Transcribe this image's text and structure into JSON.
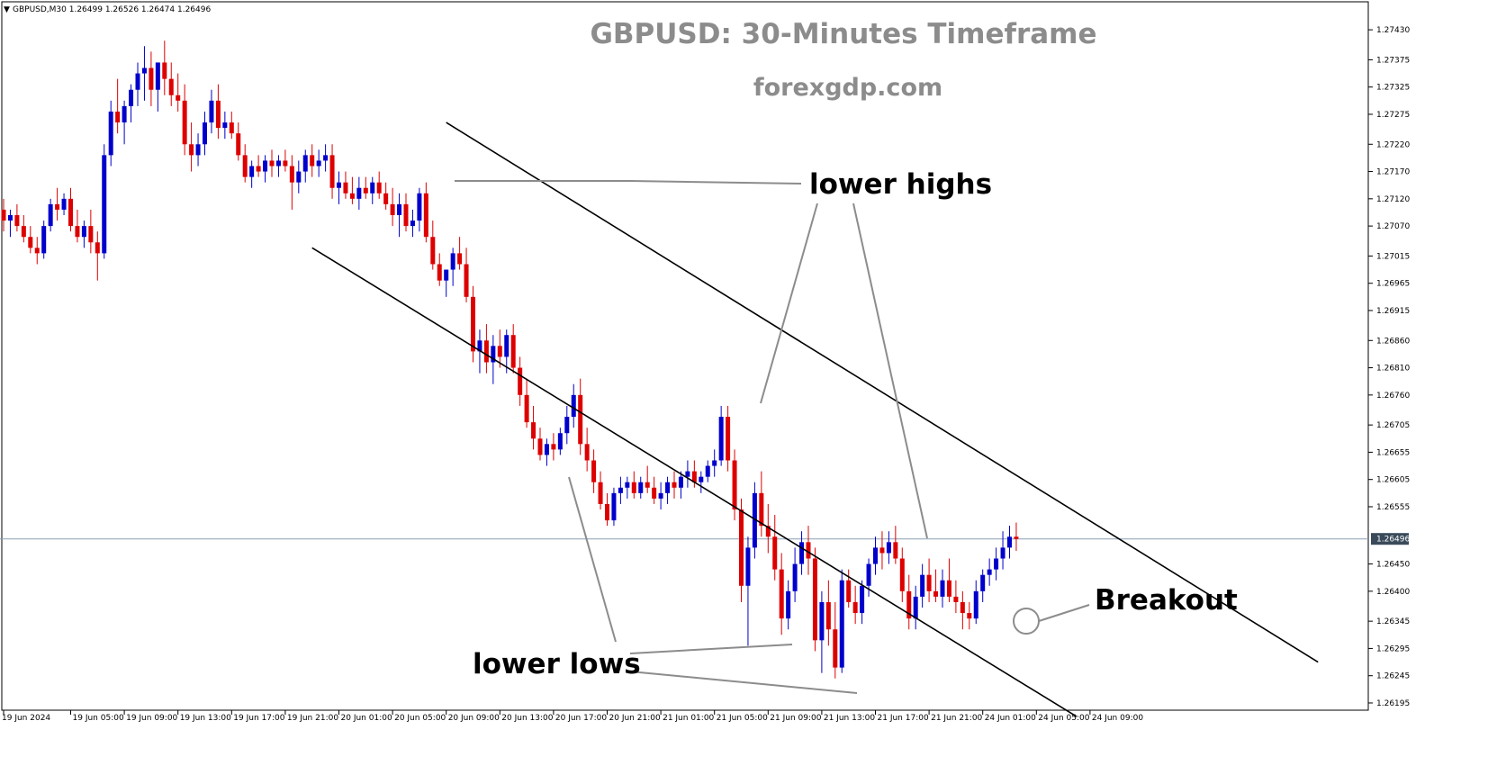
{
  "chart_data": {
    "type": "candlestick",
    "title": "GBPUSD: 30-Minutes Timeframe",
    "subtitle": "forexgdp.com",
    "header": {
      "marker": "▼",
      "text": "GBPUSD,M30  1.26499 1.26526 1.26474 1.26496"
    },
    "current_price": 1.26496,
    "current_price_label": "1.26496",
    "y_axis": {
      "range": [
        1.2619,
        1.2745
      ],
      "ticks": [
        "1.27430",
        "1.27375",
        "1.27325",
        "1.27275",
        "1.27220",
        "1.27170",
        "1.27120",
        "1.27070",
        "1.27015",
        "1.26965",
        "1.26915",
        "1.26860",
        "1.26810",
        "1.26760",
        "1.26705",
        "1.26655",
        "1.26605",
        "1.26555",
        "1.26450",
        "1.26400",
        "1.26345",
        "1.26295",
        "1.26245",
        "1.26195"
      ]
    },
    "x_axis": {
      "ticks": [
        {
          "label": "19 Jun 2024",
          "bar": 0
        },
        {
          "label": "19 Jun 05:00",
          "bar": 10
        },
        {
          "label": "19 Jun 09:00",
          "bar": 18
        },
        {
          "label": "19 Jun 13:00",
          "bar": 26
        },
        {
          "label": "19 Jun 17:00",
          "bar": 34
        },
        {
          "label": "19 Jun 21:00",
          "bar": 42
        },
        {
          "label": "20 Jun 01:00",
          "bar": 50
        },
        {
          "label": "20 Jun 05:00",
          "bar": 58
        },
        {
          "label": "20 Jun 09:00",
          "bar": 66
        },
        {
          "label": "20 Jun 13:00",
          "bar": 74
        },
        {
          "label": "20 Jun 17:00",
          "bar": 82
        },
        {
          "label": "20 Jun 21:00",
          "bar": 90
        },
        {
          "label": "21 Jun 01:00",
          "bar": 98
        },
        {
          "label": "21 Jun 05:00",
          "bar": 106
        },
        {
          "label": "21 Jun 09:00",
          "bar": 114
        },
        {
          "label": "21 Jun 13:00",
          "bar": 122
        },
        {
          "label": "21 Jun 17:00",
          "bar": 130
        },
        {
          "label": "21 Jun 21:00",
          "bar": 138
        },
        {
          "label": "24 Jun 01:00",
          "bar": 146
        },
        {
          "label": "24 Jun 05:00",
          "bar": 154
        },
        {
          "label": "24 Jun 09:00",
          "bar": 162
        }
      ]
    },
    "bull_color": "#0000cc",
    "bear_color": "#dd0000",
    "candles": [
      [
        1.271,
        1.2712,
        1.2706,
        1.2708
      ],
      [
        1.2708,
        1.271,
        1.2705,
        1.2709
      ],
      [
        1.2709,
        1.2711,
        1.2706,
        1.2707
      ],
      [
        1.2707,
        1.2709,
        1.2704,
        1.2705
      ],
      [
        1.2705,
        1.2707,
        1.2702,
        1.2703
      ],
      [
        1.2703,
        1.2705,
        1.27,
        1.2702
      ],
      [
        1.2702,
        1.2708,
        1.2701,
        1.2707
      ],
      [
        1.2707,
        1.2712,
        1.2706,
        1.2711
      ],
      [
        1.2711,
        1.2714,
        1.2708,
        1.271
      ],
      [
        1.271,
        1.2713,
        1.2709,
        1.2712
      ],
      [
        1.2712,
        1.2714,
        1.2706,
        1.2707
      ],
      [
        1.2707,
        1.271,
        1.2704,
        1.2705
      ],
      [
        1.2705,
        1.2708,
        1.2703,
        1.2707
      ],
      [
        1.2707,
        1.271,
        1.2702,
        1.2704
      ],
      [
        1.2704,
        1.2706,
        1.2697,
        1.2702
      ],
      [
        1.2702,
        1.2722,
        1.2701,
        1.272
      ],
      [
        1.272,
        1.273,
        1.2718,
        1.2728
      ],
      [
        1.2728,
        1.2734,
        1.2724,
        1.2726
      ],
      [
        1.2726,
        1.273,
        1.2722,
        1.2729
      ],
      [
        1.2729,
        1.2733,
        1.2726,
        1.2732
      ],
      [
        1.2732,
        1.2737,
        1.2729,
        1.2735
      ],
      [
        1.2735,
        1.274,
        1.273,
        1.2736
      ],
      [
        1.2736,
        1.2739,
        1.2729,
        1.2732
      ],
      [
        1.2732,
        1.2737,
        1.2728,
        1.2737
      ],
      [
        1.2737,
        1.2741,
        1.2731,
        1.2734
      ],
      [
        1.2734,
        1.2737,
        1.2729,
        1.2731
      ],
      [
        1.2731,
        1.2735,
        1.2728,
        1.273
      ],
      [
        1.273,
        1.2733,
        1.272,
        1.2722
      ],
      [
        1.2722,
        1.2726,
        1.2717,
        1.272
      ],
      [
        1.272,
        1.2724,
        1.2718,
        1.2722
      ],
      [
        1.2722,
        1.2728,
        1.272,
        1.2726
      ],
      [
        1.2726,
        1.2732,
        1.2724,
        1.273
      ],
      [
        1.273,
        1.2733,
        1.2723,
        1.2725
      ],
      [
        1.2725,
        1.2728,
        1.2723,
        1.2726
      ],
      [
        1.2726,
        1.2728,
        1.2723,
        1.2724
      ],
      [
        1.2724,
        1.2726,
        1.2719,
        1.272
      ],
      [
        1.272,
        1.2722,
        1.2715,
        1.2716
      ],
      [
        1.2716,
        1.2719,
        1.2714,
        1.2718
      ],
      [
        1.2718,
        1.272,
        1.2716,
        1.2717
      ],
      [
        1.2717,
        1.272,
        1.2715,
        1.2719
      ],
      [
        1.2719,
        1.2721,
        1.2716,
        1.2718
      ],
      [
        1.2718,
        1.272,
        1.2716,
        1.2719
      ],
      [
        1.2719,
        1.2721,
        1.2717,
        1.2718
      ],
      [
        1.2718,
        1.272,
        1.271,
        1.2715
      ],
      [
        1.2715,
        1.2719,
        1.2713,
        1.2717
      ],
      [
        1.2717,
        1.2721,
        1.2715,
        1.272
      ],
      [
        1.272,
        1.2722,
        1.2716,
        1.2718
      ],
      [
        1.2718,
        1.2721,
        1.2716,
        1.2719
      ],
      [
        1.2719,
        1.2722,
        1.2717,
        1.272
      ],
      [
        1.272,
        1.2722,
        1.2712,
        1.2714
      ],
      [
        1.2714,
        1.2717,
        1.2711,
        1.2715
      ],
      [
        1.2715,
        1.2717,
        1.2712,
        1.2713
      ],
      [
        1.2713,
        1.2716,
        1.2711,
        1.2712
      ],
      [
        1.2712,
        1.2716,
        1.271,
        1.2714
      ],
      [
        1.2714,
        1.2716,
        1.2712,
        1.2713
      ],
      [
        1.2713,
        1.2716,
        1.2711,
        1.2715
      ],
      [
        1.2715,
        1.2717,
        1.2712,
        1.2713
      ],
      [
        1.2713,
        1.2715,
        1.271,
        1.2711
      ],
      [
        1.2711,
        1.2714,
        1.2707,
        1.2709
      ],
      [
        1.2709,
        1.2713,
        1.2705,
        1.2711
      ],
      [
        1.2711,
        1.2713,
        1.2706,
        1.2707
      ],
      [
        1.2707,
        1.271,
        1.2705,
        1.2708
      ],
      [
        1.2708,
        1.2714,
        1.2706,
        1.2713
      ],
      [
        1.2713,
        1.2715,
        1.2704,
        1.2705
      ],
      [
        1.2705,
        1.2708,
        1.2699,
        1.27
      ],
      [
        1.27,
        1.2702,
        1.2696,
        1.2697
      ],
      [
        1.2697,
        1.2699,
        1.2694,
        1.2699
      ],
      [
        1.2699,
        1.2703,
        1.2696,
        1.2702
      ],
      [
        1.2702,
        1.2705,
        1.2699,
        1.27
      ],
      [
        1.27,
        1.2703,
        1.2693,
        1.2694
      ],
      [
        1.2694,
        1.2696,
        1.2682,
        1.2684
      ],
      [
        1.2684,
        1.2688,
        1.268,
        1.2686
      ],
      [
        1.2686,
        1.2689,
        1.268,
        1.2682
      ],
      [
        1.2682,
        1.2687,
        1.2678,
        1.2685
      ],
      [
        1.2685,
        1.2688,
        1.2681,
        1.2683
      ],
      [
        1.2683,
        1.2688,
        1.268,
        1.2687
      ],
      [
        1.2687,
        1.2689,
        1.268,
        1.2681
      ],
      [
        1.2681,
        1.2683,
        1.2674,
        1.2676
      ],
      [
        1.2676,
        1.2679,
        1.267,
        1.2671
      ],
      [
        1.2671,
        1.2674,
        1.2666,
        1.2668
      ],
      [
        1.2668,
        1.267,
        1.2664,
        1.2665
      ],
      [
        1.2665,
        1.2668,
        1.2663,
        1.2667
      ],
      [
        1.2667,
        1.2669,
        1.2664,
        1.2666
      ],
      [
        1.2666,
        1.267,
        1.2665,
        1.2669
      ],
      [
        1.2669,
        1.2674,
        1.2667,
        1.2672
      ],
      [
        1.2672,
        1.2678,
        1.267,
        1.2676
      ],
      [
        1.2676,
        1.2679,
        1.2665,
        1.2667
      ],
      [
        1.2667,
        1.267,
        1.2662,
        1.2664
      ],
      [
        1.2664,
        1.2666,
        1.2658,
        1.266
      ],
      [
        1.266,
        1.2662,
        1.2655,
        1.2656
      ],
      [
        1.2656,
        1.2658,
        1.2652,
        1.2653
      ],
      [
        1.2653,
        1.2659,
        1.2652,
        1.2658
      ],
      [
        1.2658,
        1.2661,
        1.2656,
        1.2659
      ],
      [
        1.2659,
        1.2661,
        1.2657,
        1.266
      ],
      [
        1.266,
        1.2662,
        1.2657,
        1.2658
      ],
      [
        1.2658,
        1.2661,
        1.2657,
        1.266
      ],
      [
        1.266,
        1.2663,
        1.2658,
        1.2659
      ],
      [
        1.2659,
        1.2661,
        1.2656,
        1.2657
      ],
      [
        1.2657,
        1.266,
        1.2655,
        1.2658
      ],
      [
        1.2658,
        1.2661,
        1.2656,
        1.266
      ],
      [
        1.266,
        1.2662,
        1.2657,
        1.2659
      ],
      [
        1.2659,
        1.2662,
        1.2657,
        1.2661
      ],
      [
        1.2661,
        1.2664,
        1.2659,
        1.2662
      ],
      [
        1.2662,
        1.2664,
        1.2659,
        1.266
      ],
      [
        1.266,
        1.2662,
        1.2658,
        1.2661
      ],
      [
        1.2661,
        1.2664,
        1.266,
        1.2663
      ],
      [
        1.2663,
        1.2666,
        1.2661,
        1.2664
      ],
      [
        1.2664,
        1.2674,
        1.2663,
        1.2672
      ],
      [
        1.2672,
        1.2674,
        1.2662,
        1.2664
      ],
      [
        1.2664,
        1.2666,
        1.2653,
        1.2655
      ],
      [
        1.2655,
        1.2657,
        1.2638,
        1.2641
      ],
      [
        1.2641,
        1.265,
        1.263,
        1.2648
      ],
      [
        1.2648,
        1.266,
        1.2646,
        1.2658
      ],
      [
        1.2658,
        1.2662,
        1.265,
        1.2652
      ],
      [
        1.2652,
        1.2656,
        1.2647,
        1.265
      ],
      [
        1.265,
        1.2654,
        1.2642,
        1.2644
      ],
      [
        1.2644,
        1.2647,
        1.2632,
        1.2635
      ],
      [
        1.2635,
        1.2642,
        1.2633,
        1.264
      ],
      [
        1.264,
        1.2648,
        1.2638,
        1.2645
      ],
      [
        1.2645,
        1.2651,
        1.2643,
        1.2649
      ],
      [
        1.2649,
        1.2652,
        1.2643,
        1.2646
      ],
      [
        1.2646,
        1.2648,
        1.2629,
        1.2631
      ],
      [
        1.2631,
        1.264,
        1.2625,
        1.2638
      ],
      [
        1.2638,
        1.2642,
        1.263,
        1.2633
      ],
      [
        1.2633,
        1.2638,
        1.2624,
        1.2626
      ],
      [
        1.2626,
        1.2644,
        1.2625,
        1.2642
      ],
      [
        1.2642,
        1.2644,
        1.2637,
        1.2638
      ],
      [
        1.2638,
        1.2641,
        1.2634,
        1.2636
      ],
      [
        1.2636,
        1.2642,
        1.2634,
        1.2641
      ],
      [
        1.2641,
        1.2646,
        1.2639,
        1.2645
      ],
      [
        1.2645,
        1.265,
        1.2643,
        1.2648
      ],
      [
        1.2648,
        1.2651,
        1.2644,
        1.2647
      ],
      [
        1.2647,
        1.2651,
        1.2645,
        1.2649
      ],
      [
        1.2649,
        1.2652,
        1.2645,
        1.2646
      ],
      [
        1.2646,
        1.2648,
        1.2638,
        1.264
      ],
      [
        1.264,
        1.2643,
        1.2633,
        1.2635
      ],
      [
        1.2635,
        1.2641,
        1.2633,
        1.2639
      ],
      [
        1.2639,
        1.2645,
        1.2637,
        1.2643
      ],
      [
        1.2643,
        1.2646,
        1.2638,
        1.264
      ],
      [
        1.264,
        1.2644,
        1.2638,
        1.2639
      ],
      [
        1.2639,
        1.2644,
        1.2637,
        1.2642
      ],
      [
        1.2642,
        1.2646,
        1.2638,
        1.2639
      ],
      [
        1.2639,
        1.2642,
        1.2636,
        1.2638
      ],
      [
        1.2638,
        1.264,
        1.2633,
        1.2636
      ],
      [
        1.2636,
        1.2638,
        1.2633,
        1.2635
      ],
      [
        1.2635,
        1.2642,
        1.2634,
        1.264
      ],
      [
        1.264,
        1.2644,
        1.2638,
        1.2643
      ],
      [
        1.2643,
        1.2646,
        1.2641,
        1.2644
      ],
      [
        1.2644,
        1.2648,
        1.2642,
        1.2646
      ],
      [
        1.2646,
        1.2651,
        1.2644,
        1.2648
      ],
      [
        1.2648,
        1.2652,
        1.2646,
        1.265
      ],
      [
        1.265,
        1.26526,
        1.26474,
        1.26496
      ]
    ],
    "channel": {
      "upper": [
        [
          1.2726,
          66
        ],
        [
          1.2627,
          196
        ]
      ],
      "lower": [
        [
          1.2703,
          46
        ],
        [
          1.2617,
          160
        ]
      ]
    },
    "annotations": [
      {
        "text": "lower highs"
      },
      {
        "text": "lower lows"
      },
      {
        "text": "Breakout"
      }
    ],
    "grid": false
  }
}
